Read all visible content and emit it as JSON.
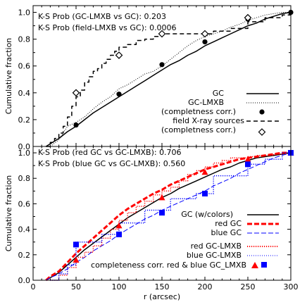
{
  "chart_data": [
    {
      "type": "line",
      "ylabel": "Cumulative fraction",
      "xlim": [
        0,
        300
      ],
      "ylim": [
        0,
        1.05
      ],
      "yticks": [
        "0.0",
        "0.2",
        "0.4",
        "0.6",
        "0.8",
        "1.0"
      ],
      "ks_text": [
        "K-S Prob (GC-LMXB vs GC): 0.203",
        "K-S Prob (field-LMXB vs GC): 0.0006"
      ],
      "legend": {
        "placement": "bottom-right",
        "entries": [
          "GC",
          "GC-LMXB",
          "(completness corr.)",
          "field X-ray sources",
          "(completness corr.)"
        ]
      },
      "series": [
        {
          "name": "GC",
          "style": "solid",
          "color": "#000000",
          "x": [
            15,
            20,
            30,
            40,
            50,
            60,
            70,
            80,
            90,
            100,
            110,
            120,
            130,
            140,
            150,
            160,
            170,
            180,
            190,
            200,
            210,
            220,
            230,
            240,
            250,
            260,
            270,
            280,
            290,
            300
          ],
          "y": [
            0.0,
            0.02,
            0.06,
            0.11,
            0.15,
            0.2,
            0.25,
            0.29,
            0.33,
            0.37,
            0.41,
            0.45,
            0.49,
            0.53,
            0.57,
            0.61,
            0.64,
            0.68,
            0.71,
            0.75,
            0.78,
            0.81,
            0.84,
            0.87,
            0.9,
            0.92,
            0.95,
            0.97,
            0.99,
            1.0
          ]
        },
        {
          "name": "GC-LMXB",
          "style": "dotted",
          "color": "#000000",
          "x": [
            20,
            30,
            40,
            50,
            60,
            70,
            80,
            90,
            100,
            110,
            120,
            130,
            140,
            150,
            160,
            170,
            180,
            190,
            200,
            210,
            220,
            230,
            240,
            250,
            260,
            270,
            280,
            290,
            300
          ],
          "y": [
            0.0,
            0.05,
            0.15,
            0.18,
            0.22,
            0.28,
            0.33,
            0.37,
            0.43,
            0.46,
            0.5,
            0.54,
            0.56,
            0.6,
            0.65,
            0.7,
            0.75,
            0.79,
            0.82,
            0.84,
            0.86,
            0.89,
            0.91,
            0.94,
            0.96,
            0.98,
            0.99,
            1.0,
            1.0
          ]
        },
        {
          "name": "field X-ray sources",
          "style": "dashed-step",
          "color": "#000000",
          "x": [
            15,
            20,
            25,
            30,
            35,
            40,
            45,
            50,
            55,
            60,
            65,
            70,
            75,
            80,
            85,
            90,
            95,
            100,
            110,
            120,
            130,
            140,
            150,
            160,
            175,
            190,
            200,
            210,
            230,
            250,
            270,
            290,
            300
          ],
          "y": [
            0.0,
            0.03,
            0.06,
            0.1,
            0.15,
            0.22,
            0.3,
            0.37,
            0.42,
            0.48,
            0.52,
            0.56,
            0.58,
            0.62,
            0.65,
            0.68,
            0.71,
            0.74,
            0.76,
            0.79,
            0.8,
            0.82,
            0.84,
            0.84,
            0.84,
            0.84,
            0.84,
            0.86,
            0.88,
            0.93,
            0.96,
            0.98,
            1.0
          ]
        }
      ],
      "markers": [
        {
          "name": "GC-LMXB (completness corr.)",
          "shape": "filled-circle",
          "x": [
            50,
            100,
            150,
            200,
            250,
            300
          ],
          "y": [
            0.16,
            0.39,
            0.61,
            0.78,
            0.95,
            1.0
          ]
        },
        {
          "name": "field X-ray sources (completness corr.)",
          "shape": "open-diamond",
          "x": [
            50,
            100,
            150,
            200,
            250
          ],
          "y": [
            0.4,
            0.68,
            0.84,
            0.84,
            0.96
          ]
        }
      ]
    },
    {
      "type": "line",
      "xlabel": "r (arcsec)",
      "ylabel": "Cumulative fraction",
      "xlim": [
        0,
        300
      ],
      "ylim": [
        0,
        1.05
      ],
      "xticks": [
        "0",
        "50",
        "100",
        "150",
        "200",
        "250",
        "300"
      ],
      "yticks": [
        "0.0",
        "0.2",
        "0.4",
        "0.6",
        "0.8",
        "1.0"
      ],
      "ks_text": [
        "K-S Prob (red GC vs GC-LMXB): 0.706",
        "K-S Prob (blue GC vs GC-LMXB): 0.560"
      ],
      "legend": {
        "placement": "bottom-right",
        "entries": [
          "GC (w/colors)",
          "red GC",
          "blue GC",
          "red GC-LMXB",
          "blue GC-LMXB",
          "completeness corr. red & blue GC_LMXB"
        ]
      },
      "colors": {
        "red": "#ff0000",
        "blue": "#0000ff",
        "black": "#000000"
      },
      "series": [
        {
          "name": "GC (w/colors)",
          "style": "solid",
          "color": "#000000",
          "x": [
            15,
            20,
            30,
            40,
            50,
            60,
            70,
            80,
            90,
            100,
            110,
            120,
            130,
            140,
            150,
            160,
            170,
            180,
            190,
            200,
            210,
            220,
            230,
            240,
            250,
            260,
            270,
            280,
            290,
            300
          ],
          "y": [
            0.0,
            0.02,
            0.06,
            0.12,
            0.18,
            0.24,
            0.29,
            0.34,
            0.39,
            0.44,
            0.49,
            0.53,
            0.57,
            0.61,
            0.65,
            0.68,
            0.72,
            0.75,
            0.78,
            0.81,
            0.84,
            0.87,
            0.89,
            0.92,
            0.94,
            0.96,
            0.97,
            0.98,
            0.99,
            1.0
          ]
        },
        {
          "name": "red GC",
          "style": "thick-dashed",
          "color": "#ff0000",
          "x": [
            15,
            20,
            30,
            40,
            50,
            60,
            70,
            80,
            90,
            100,
            110,
            120,
            130,
            140,
            150,
            160,
            170,
            180,
            190,
            200,
            210,
            220,
            230,
            240,
            250,
            260,
            270,
            280,
            290,
            300
          ],
          "y": [
            0.0,
            0.03,
            0.07,
            0.14,
            0.21,
            0.27,
            0.33,
            0.39,
            0.45,
            0.51,
            0.56,
            0.6,
            0.64,
            0.68,
            0.71,
            0.75,
            0.78,
            0.81,
            0.84,
            0.87,
            0.89,
            0.91,
            0.93,
            0.95,
            0.96,
            0.97,
            0.98,
            0.99,
            1.0,
            1.0
          ]
        },
        {
          "name": "blue GC",
          "style": "dashed",
          "color": "#0000ff",
          "x": [
            15,
            20,
            30,
            40,
            50,
            60,
            70,
            80,
            90,
            100,
            110,
            120,
            130,
            140,
            150,
            160,
            170,
            180,
            190,
            200,
            210,
            220,
            230,
            240,
            250,
            260,
            270,
            280,
            290,
            300
          ],
          "y": [
            0.0,
            0.02,
            0.05,
            0.09,
            0.14,
            0.18,
            0.23,
            0.27,
            0.31,
            0.36,
            0.4,
            0.44,
            0.48,
            0.51,
            0.55,
            0.58,
            0.61,
            0.64,
            0.67,
            0.7,
            0.74,
            0.77,
            0.8,
            0.84,
            0.87,
            0.9,
            0.93,
            0.96,
            0.98,
            1.0
          ]
        },
        {
          "name": "red GC-LMXB",
          "style": "dotted-step",
          "color": "#ff0000",
          "x": [
            20,
            30,
            40,
            50,
            60,
            70,
            80,
            90,
            100,
            110,
            120,
            130,
            140,
            150,
            160,
            170,
            180,
            190,
            200,
            210,
            220,
            230,
            240,
            250,
            260,
            270,
            280,
            290,
            300
          ],
          "y": [
            0.0,
            0.04,
            0.1,
            0.18,
            0.22,
            0.27,
            0.33,
            0.4,
            0.47,
            0.53,
            0.58,
            0.62,
            0.67,
            0.7,
            0.73,
            0.78,
            0.83,
            0.86,
            0.89,
            0.92,
            0.94,
            0.96,
            0.96,
            0.97,
            0.98,
            0.98,
            0.99,
            1.0,
            1.0
          ]
        },
        {
          "name": "blue GC-LMXB",
          "style": "dotted-step",
          "color": "#0000ff",
          "x": [
            20,
            30,
            40,
            50,
            60,
            70,
            80,
            90,
            100,
            110,
            120,
            130,
            140,
            150,
            160,
            170,
            180,
            190,
            200,
            210,
            220,
            230,
            240,
            250,
            260,
            270,
            280,
            290,
            300
          ],
          "y": [
            0.0,
            0.05,
            0.12,
            0.3,
            0.3,
            0.3,
            0.36,
            0.36,
            0.45,
            0.45,
            0.45,
            0.55,
            0.55,
            0.55,
            0.64,
            0.64,
            0.64,
            0.68,
            0.68,
            0.82,
            0.82,
            0.82,
            0.82,
            0.91,
            0.91,
            0.95,
            0.95,
            1.0,
            1.0
          ]
        }
      ],
      "markers": [
        {
          "name": "completeness corr. red GC_LMXB",
          "shape": "filled-triangle",
          "color": "#ff0000",
          "x": [
            50,
            100,
            150,
            200,
            250,
            300
          ],
          "y": [
            0.16,
            0.43,
            0.65,
            0.85,
            0.95,
            1.0
          ]
        },
        {
          "name": "completeness corr. blue GC_LMXB",
          "shape": "filled-square",
          "color": "#0000ff",
          "x": [
            50,
            100,
            150,
            200,
            250,
            300
          ],
          "y": [
            0.28,
            0.36,
            0.53,
            0.68,
            0.91,
            1.0
          ]
        }
      ]
    }
  ]
}
